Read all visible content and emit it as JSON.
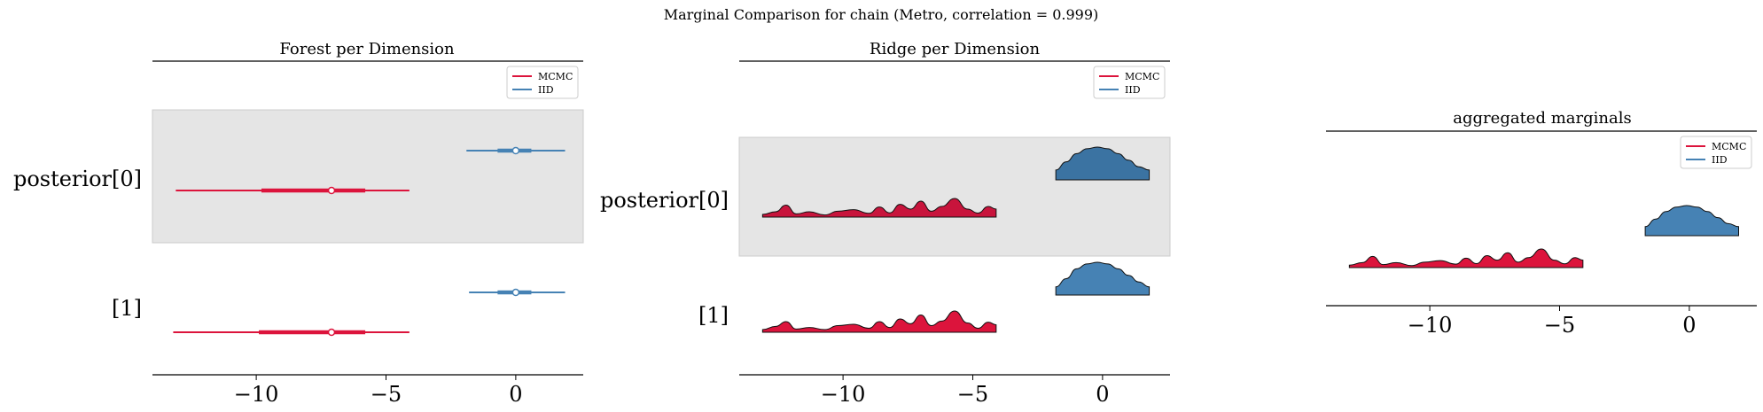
{
  "figure": {
    "suptitle": "Marginal Comparison for chain (Metro, correlation = 0.999)"
  },
  "colors": {
    "mcmc": "#dc143c",
    "mcmc_dark": "#c8143c",
    "iid": "#4682b4",
    "iid_dark": "#3b73a2",
    "band": "#e5e5e5"
  },
  "chart_data": [
    {
      "type": "forest",
      "title": "Forest per Dimension",
      "rows": [
        "posterior[0]",
        "[1]"
      ],
      "xlim": [
        -14,
        2.6
      ],
      "xticks": [
        -10,
        -5,
        0
      ],
      "xtick_labels": [
        "−10",
        "−5",
        "0"
      ],
      "legend": {
        "placement": "top-right",
        "entries": [
          "MCMC",
          "IID"
        ]
      },
      "series": [
        {
          "name": "MCMC",
          "intervals": [
            {
              "row": 0,
              "hdi94": [
                -13.1,
                -4.1
              ],
              "hdi50": [
                -9.8,
                -5.8
              ],
              "median": -7.1
            },
            {
              "row": 1,
              "hdi94": [
                -13.2,
                -4.1
              ],
              "hdi50": [
                -9.9,
                -5.8
              ],
              "median": -7.1
            }
          ]
        },
        {
          "name": "IID",
          "intervals": [
            {
              "row": 0,
              "hdi94": [
                -1.9,
                1.9
              ],
              "hdi50": [
                -0.7,
                0.6
              ],
              "median": 0.0
            },
            {
              "row": 1,
              "hdi94": [
                -1.8,
                1.9
              ],
              "hdi50": [
                -0.7,
                0.6
              ],
              "median": 0.0
            }
          ]
        }
      ]
    },
    {
      "type": "ridge",
      "title": "Ridge per Dimension",
      "rows": [
        "posterior[0]",
        "[1]"
      ],
      "xlim": [
        -14,
        2.6
      ],
      "xticks": [
        -10,
        -5,
        0
      ],
      "xtick_labels": [
        "−10",
        "−5",
        "0"
      ],
      "legend": {
        "placement": "top-right",
        "entries": [
          "MCMC",
          "IID"
        ]
      },
      "series": [
        {
          "name": "MCMC",
          "x": [
            -13.1,
            -12.6,
            -12.2,
            -11.8,
            -11.3,
            -10.7,
            -10.2,
            -9.6,
            -9.0,
            -8.6,
            -8.2,
            -7.8,
            -7.4,
            -7.0,
            -6.6,
            -6.2,
            -5.7,
            -5.2,
            -4.8,
            -4.4,
            -4.1
          ],
          "ridges": [
            [
              0.1,
              0.2,
              0.45,
              0.12,
              0.2,
              0.08,
              0.22,
              0.28,
              0.14,
              0.38,
              0.16,
              0.48,
              0.3,
              0.6,
              0.22,
              0.4,
              0.7,
              0.3,
              0.15,
              0.4,
              0.3
            ],
            [
              0.1,
              0.22,
              0.4,
              0.12,
              0.18,
              0.1,
              0.25,
              0.3,
              0.15,
              0.4,
              0.18,
              0.5,
              0.32,
              0.65,
              0.25,
              0.42,
              0.8,
              0.35,
              0.15,
              0.38,
              0.28
            ]
          ]
        },
        {
          "name": "IID",
          "x": [
            -1.8,
            -1.4,
            -1.0,
            -0.6,
            -0.2,
            0.2,
            0.6,
            1.0,
            1.4,
            1.8
          ],
          "ridges": [
            [
              0.3,
              0.55,
              0.8,
              0.95,
              1.0,
              0.95,
              0.8,
              0.6,
              0.4,
              0.3
            ],
            [
              0.25,
              0.5,
              0.8,
              0.95,
              1.0,
              0.95,
              0.8,
              0.6,
              0.4,
              0.25
            ]
          ]
        }
      ]
    },
    {
      "type": "density",
      "title": "aggregated marginals",
      "xlim": [
        -14,
        2.6
      ],
      "xticks": [
        -10,
        -5,
        0
      ],
      "xtick_labels": [
        "−10",
        "−5",
        "0"
      ],
      "legend": {
        "placement": "top-right",
        "entries": [
          "MCMC",
          "IID"
        ]
      },
      "series": [
        {
          "name": "MCMC",
          "x": [
            -13.1,
            -12.6,
            -12.2,
            -11.8,
            -11.3,
            -10.7,
            -10.2,
            -9.6,
            -9.0,
            -8.6,
            -8.2,
            -7.8,
            -7.4,
            -7.0,
            -6.6,
            -6.2,
            -5.7,
            -5.2,
            -4.8,
            -4.4,
            -4.1
          ],
          "density": [
            0.1,
            0.2,
            0.45,
            0.12,
            0.2,
            0.08,
            0.22,
            0.28,
            0.14,
            0.38,
            0.16,
            0.48,
            0.3,
            0.6,
            0.22,
            0.4,
            0.75,
            0.3,
            0.15,
            0.4,
            0.3
          ]
        },
        {
          "name": "IID",
          "x": [
            -1.7,
            -1.3,
            -0.9,
            -0.5,
            -0.1,
            0.3,
            0.7,
            1.1,
            1.5,
            1.9
          ],
          "density": [
            0.3,
            0.55,
            0.8,
            0.95,
            1.0,
            0.95,
            0.8,
            0.6,
            0.4,
            0.3
          ]
        }
      ]
    }
  ]
}
